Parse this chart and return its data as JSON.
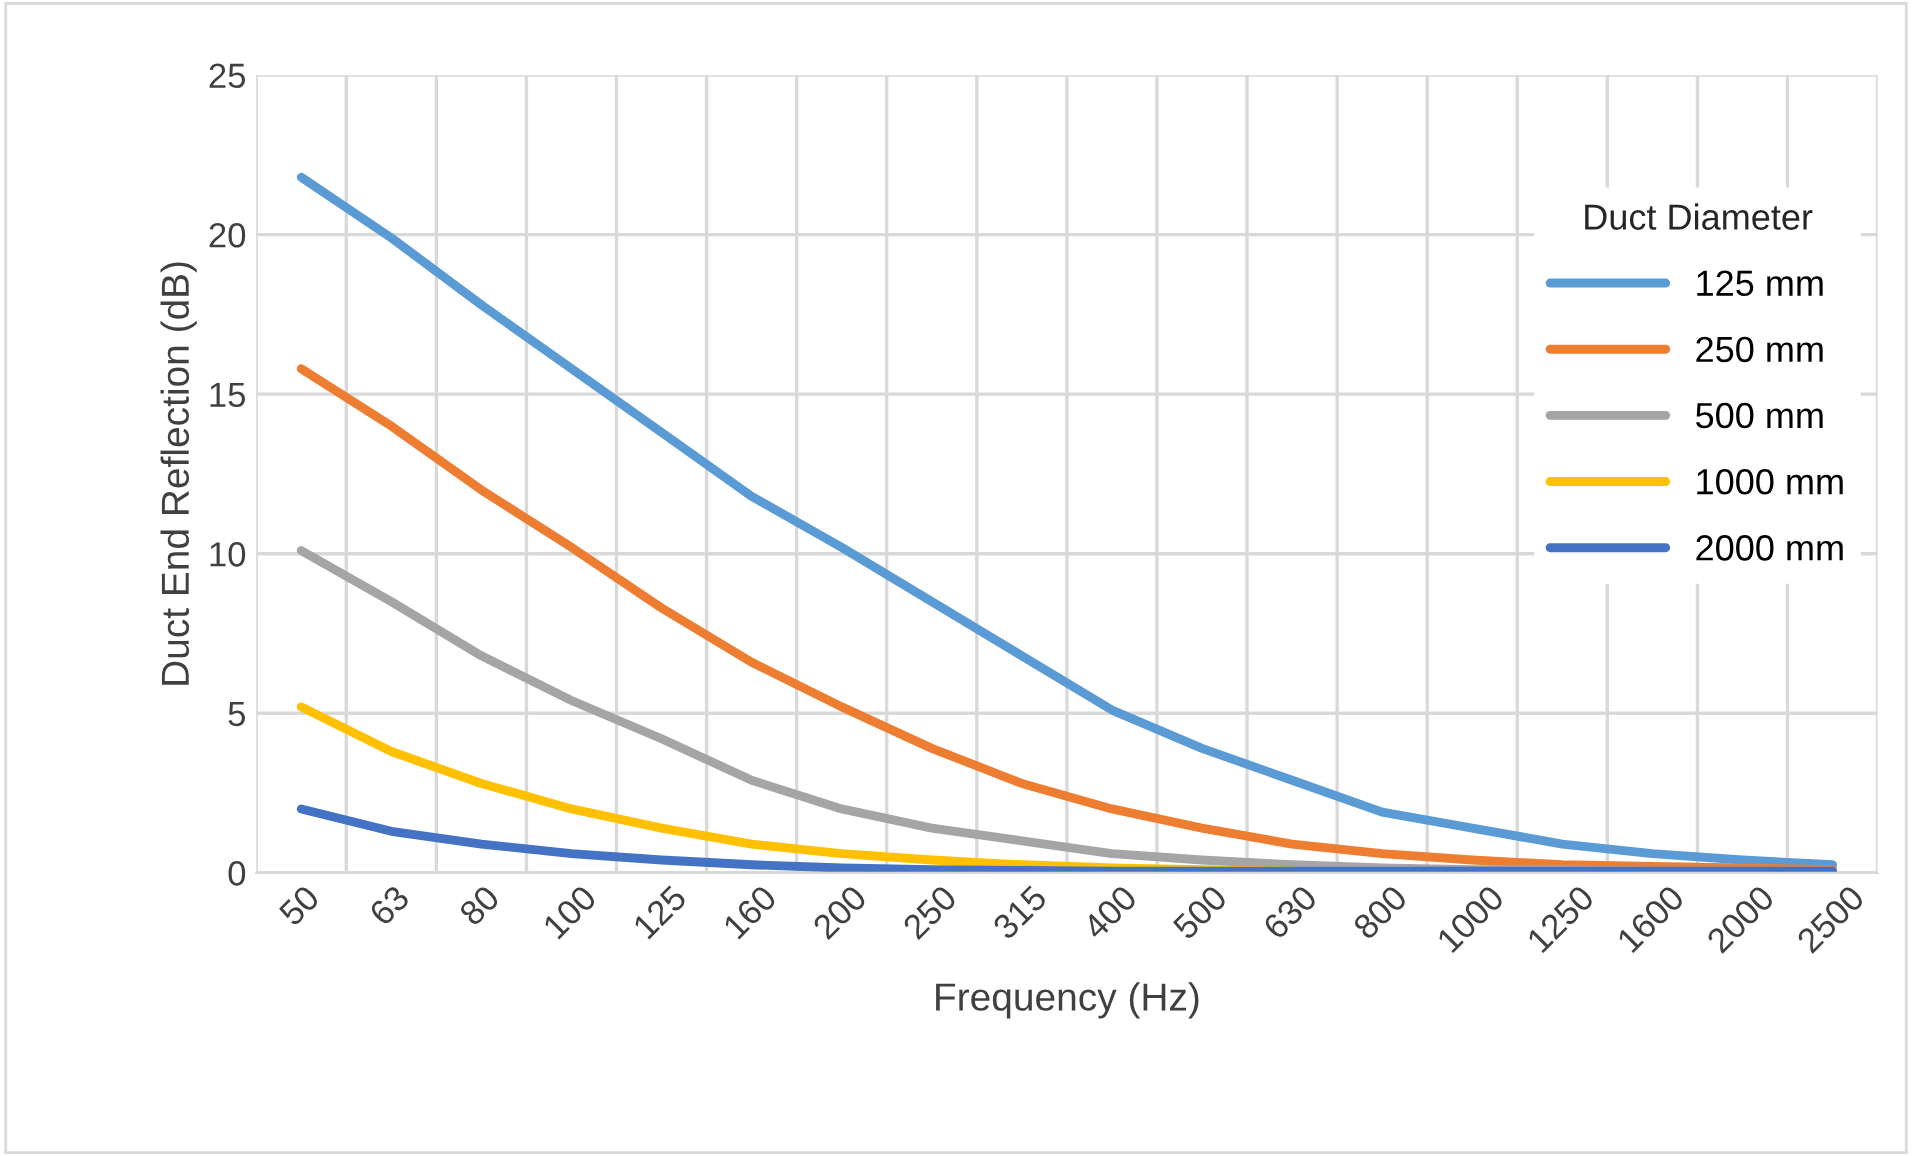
{
  "chart_data": {
    "type": "line",
    "xlabel": "Frequency (Hz)",
    "ylabel": "Duct End Reflection (dB)",
    "legend_title": "Duct Diameter",
    "categories": [
      "50",
      "63",
      "80",
      "100",
      "125",
      "160",
      "200",
      "250",
      "315",
      "400",
      "500",
      "630",
      "800",
      "1000",
      "1250",
      "1600",
      "2000",
      "2500"
    ],
    "series": [
      {
        "name": "125 mm",
        "color": "#5b9bd5",
        "values": [
          21.8,
          19.9,
          17.8,
          15.8,
          13.8,
          11.8,
          10.2,
          8.5,
          6.8,
          5.1,
          3.9,
          2.9,
          1.9,
          1.4,
          0.9,
          0.6,
          0.4,
          0.25
        ]
      },
      {
        "name": "250 mm",
        "color": "#ed7d31",
        "values": [
          15.8,
          14.0,
          12.0,
          10.2,
          8.3,
          6.6,
          5.2,
          3.9,
          2.8,
          2.0,
          1.4,
          0.9,
          0.6,
          0.4,
          0.25,
          0.2,
          0.15,
          0.1
        ]
      },
      {
        "name": "500 mm",
        "color": "#a5a5a5",
        "values": [
          10.1,
          8.5,
          6.8,
          5.4,
          4.2,
          2.9,
          2.0,
          1.4,
          1.0,
          0.6,
          0.4,
          0.25,
          0.15,
          0.1,
          0.1,
          0.05,
          0.05,
          0.05
        ]
      },
      {
        "name": "1000 mm",
        "color": "#ffc000",
        "values": [
          5.2,
          3.8,
          2.8,
          2.0,
          1.4,
          0.9,
          0.6,
          0.4,
          0.25,
          0.15,
          0.1,
          0.05,
          null,
          null,
          null,
          null,
          null,
          null
        ]
      },
      {
        "name": "2000 mm",
        "color": "#4472c4",
        "values": [
          2.0,
          1.3,
          0.9,
          0.6,
          0.4,
          0.25,
          0.15,
          0.1,
          0.07,
          0.05,
          0.05,
          0.05,
          0.05,
          0.05,
          0.05,
          0.05,
          0.05,
          0.05
        ]
      }
    ],
    "ylim": [
      0,
      25
    ],
    "yticks": [
      0,
      5,
      10,
      15,
      20,
      25
    ],
    "grid": true,
    "legend": "right",
    "marker": "none",
    "line_style": "solid"
  }
}
